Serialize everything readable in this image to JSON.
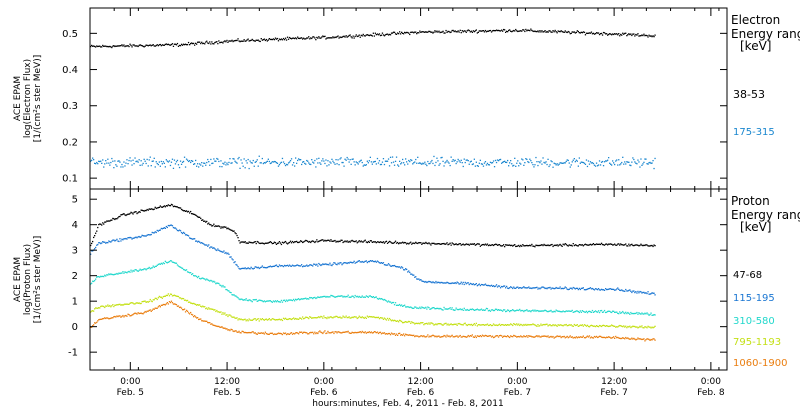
{
  "chart_data": {
    "type": "scatter",
    "time_axis": {
      "label": "hours:minutes, Feb.  4, 2011 - Feb.  8, 2011",
      "start": "2011-02-04T19:00",
      "end": "2011-02-08T02:00",
      "ticks": [
        {
          "time": "2011-02-05T00:00",
          "line1": "0:00",
          "line2": "Feb. 5"
        },
        {
          "time": "2011-02-05T12:00",
          "line1": "12:00",
          "line2": "Feb. 5"
        },
        {
          "time": "2011-02-06T00:00",
          "line1": "0:00",
          "line2": "Feb. 6"
        },
        {
          "time": "2011-02-06T12:00",
          "line1": "12:00",
          "line2": "Feb. 6"
        },
        {
          "time": "2011-02-07T00:00",
          "line1": "0:00",
          "line2": "Feb. 7"
        },
        {
          "time": "2011-02-07T12:00",
          "line1": "12:00",
          "line2": "Feb. 7"
        },
        {
          "time": "2011-02-08T00:00",
          "line1": "0:00",
          "line2": "Feb. 8"
        }
      ]
    },
    "panels": [
      {
        "id": "electron",
        "ylabel": [
          "ACE EPAM",
          "log(Electron Flux)",
          "[1/(cm²s ster MeV)]"
        ],
        "ylim": [
          0.07,
          0.57
        ],
        "yticks": [
          0.1,
          0.2,
          0.3,
          0.4,
          0.5
        ],
        "ytick_labels": [
          "0.1",
          "0.2",
          "0.3",
          "0.4",
          "0.5"
        ],
        "legend_title": [
          "Electron",
          "Energy ranges",
          "[keV]"
        ],
        "series": [
          {
            "name": "38-53",
            "color": "#000000",
            "scatter": 0.006,
            "t": [
              "2011-02-04T19:00",
              "2011-02-05T06:00",
              "2011-02-05T12:00",
              "2011-02-06T00:00",
              "2011-02-06T12:00",
              "2011-02-07T00:00",
              "2011-02-07T12:00",
              "2011-02-07T17:00"
            ],
            "y": [
              0.465,
              0.47,
              0.48,
              0.49,
              0.505,
              0.51,
              0.5,
              0.495
            ]
          },
          {
            "name": "175-315",
            "color": "#1a87cf",
            "scatter": 0.02,
            "t": [
              "2011-02-04T19:00",
              "2011-02-06T00:00",
              "2011-02-07T17:00"
            ],
            "y": [
              0.145,
              0.145,
              0.145
            ]
          }
        ]
      },
      {
        "id": "proton",
        "ylabel": [
          "ACE EPAM",
          "log(Proton Flux)",
          "[1/(cm²s ster MeV)]"
        ],
        "ylim": [
          -1.7,
          5.4
        ],
        "yticks": [
          -1,
          0,
          1,
          2,
          3,
          4,
          5
        ],
        "ytick_labels": [
          "-1",
          "0",
          "1",
          "2",
          "3",
          "4",
          "5"
        ],
        "legend_title": [
          "Proton",
          "Energy ranges",
          "[keV]"
        ],
        "series": [
          {
            "name": "47-68",
            "color": "#000000",
            "scatter": 0.07,
            "t": [
              "2011-02-04T19:00",
              "2011-02-04T20:00",
              "2011-02-04T23:00",
              "2011-02-05T02:00",
              "2011-02-05T05:00",
              "2011-02-05T08:00",
              "2011-02-05T10:00",
              "2011-02-05T12:00",
              "2011-02-05T13:00",
              "2011-02-05T13:30",
              "2011-02-05T18:00",
              "2011-02-06T00:00",
              "2011-02-06T06:00",
              "2011-02-06T12:00",
              "2011-02-06T18:00",
              "2011-02-07T00:00",
              "2011-02-07T12:00",
              "2011-02-07T17:00"
            ],
            "y": [
              3.2,
              4.0,
              4.4,
              4.6,
              4.8,
              4.4,
              4.0,
              3.9,
              3.7,
              3.35,
              3.3,
              3.4,
              3.35,
              3.3,
              3.25,
              3.2,
              3.25,
              3.2
            ]
          },
          {
            "name": "115-195",
            "color": "#1a76d2",
            "scatter": 0.07,
            "t": [
              "2011-02-04T19:00",
              "2011-02-04T20:00",
              "2011-02-05T02:00",
              "2011-02-05T05:00",
              "2011-02-05T08:00",
              "2011-02-05T11:00",
              "2011-02-05T12:00",
              "2011-02-05T13:30",
              "2011-02-05T18:00",
              "2011-02-06T00:00",
              "2011-02-06T06:00",
              "2011-02-06T10:00",
              "2011-02-06T12:00",
              "2011-02-06T18:00",
              "2011-02-07T00:00",
              "2011-02-07T12:00",
              "2011-02-07T17:00"
            ],
            "y": [
              2.9,
              3.3,
              3.6,
              4.0,
              3.4,
              3.0,
              2.9,
              2.3,
              2.4,
              2.45,
              2.6,
              2.3,
              1.8,
              1.7,
              1.55,
              1.5,
              1.3
            ]
          },
          {
            "name": "310-580",
            "color": "#22d8cc",
            "scatter": 0.07,
            "t": [
              "2011-02-04T19:00",
              "2011-02-04T20:00",
              "2011-02-05T02:00",
              "2011-02-05T05:00",
              "2011-02-05T08:00",
              "2011-02-05T11:00",
              "2011-02-05T13:30",
              "2011-02-05T18:00",
              "2011-02-06T00:00",
              "2011-02-06T06:00",
              "2011-02-06T10:00",
              "2011-02-06T12:00",
              "2011-02-06T18:00",
              "2011-02-07T00:00",
              "2011-02-07T12:00",
              "2011-02-07T17:00"
            ],
            "y": [
              1.7,
              2.0,
              2.3,
              2.6,
              2.0,
              1.7,
              1.1,
              1.0,
              1.2,
              1.2,
              0.8,
              0.75,
              0.7,
              0.65,
              0.6,
              0.5
            ]
          },
          {
            "name": "795-1193",
            "color": "#c4e016",
            "scatter": 0.07,
            "t": [
              "2011-02-04T19:00",
              "2011-02-04T20:00",
              "2011-02-05T02:00",
              "2011-02-05T05:00",
              "2011-02-05T08:00",
              "2011-02-05T11:00",
              "2011-02-05T13:30",
              "2011-02-05T18:00",
              "2011-02-06T00:00",
              "2011-02-06T06:00",
              "2011-02-06T10:00",
              "2011-02-06T12:00",
              "2011-02-06T18:00",
              "2011-02-07T00:00",
              "2011-02-07T12:00",
              "2011-02-07T17:00"
            ],
            "y": [
              0.6,
              0.8,
              1.0,
              1.3,
              0.9,
              0.6,
              0.3,
              0.3,
              0.4,
              0.4,
              0.2,
              0.15,
              0.1,
              0.1,
              0.05,
              0.0
            ]
          },
          {
            "name": "1060-1900",
            "color": "#ea7e10",
            "scatter": 0.07,
            "t": [
              "2011-02-04T19:00",
              "2011-02-04T20:00",
              "2011-02-05T02:00",
              "2011-02-05T05:00",
              "2011-02-05T08:00",
              "2011-02-05T11:00",
              "2011-02-05T13:30",
              "2011-02-05T18:00",
              "2011-02-06T00:00",
              "2011-02-06T06:00",
              "2011-02-06T10:00",
              "2011-02-06T12:00",
              "2011-02-06T18:00",
              "2011-02-07T00:00",
              "2011-02-07T12:00",
              "2011-02-07T17:00"
            ],
            "y": [
              0.0,
              0.3,
              0.6,
              1.0,
              0.4,
              0.0,
              -0.2,
              -0.25,
              -0.2,
              -0.2,
              -0.3,
              -0.35,
              -0.35,
              -0.35,
              -0.4,
              -0.5
            ]
          }
        ]
      }
    ]
  }
}
